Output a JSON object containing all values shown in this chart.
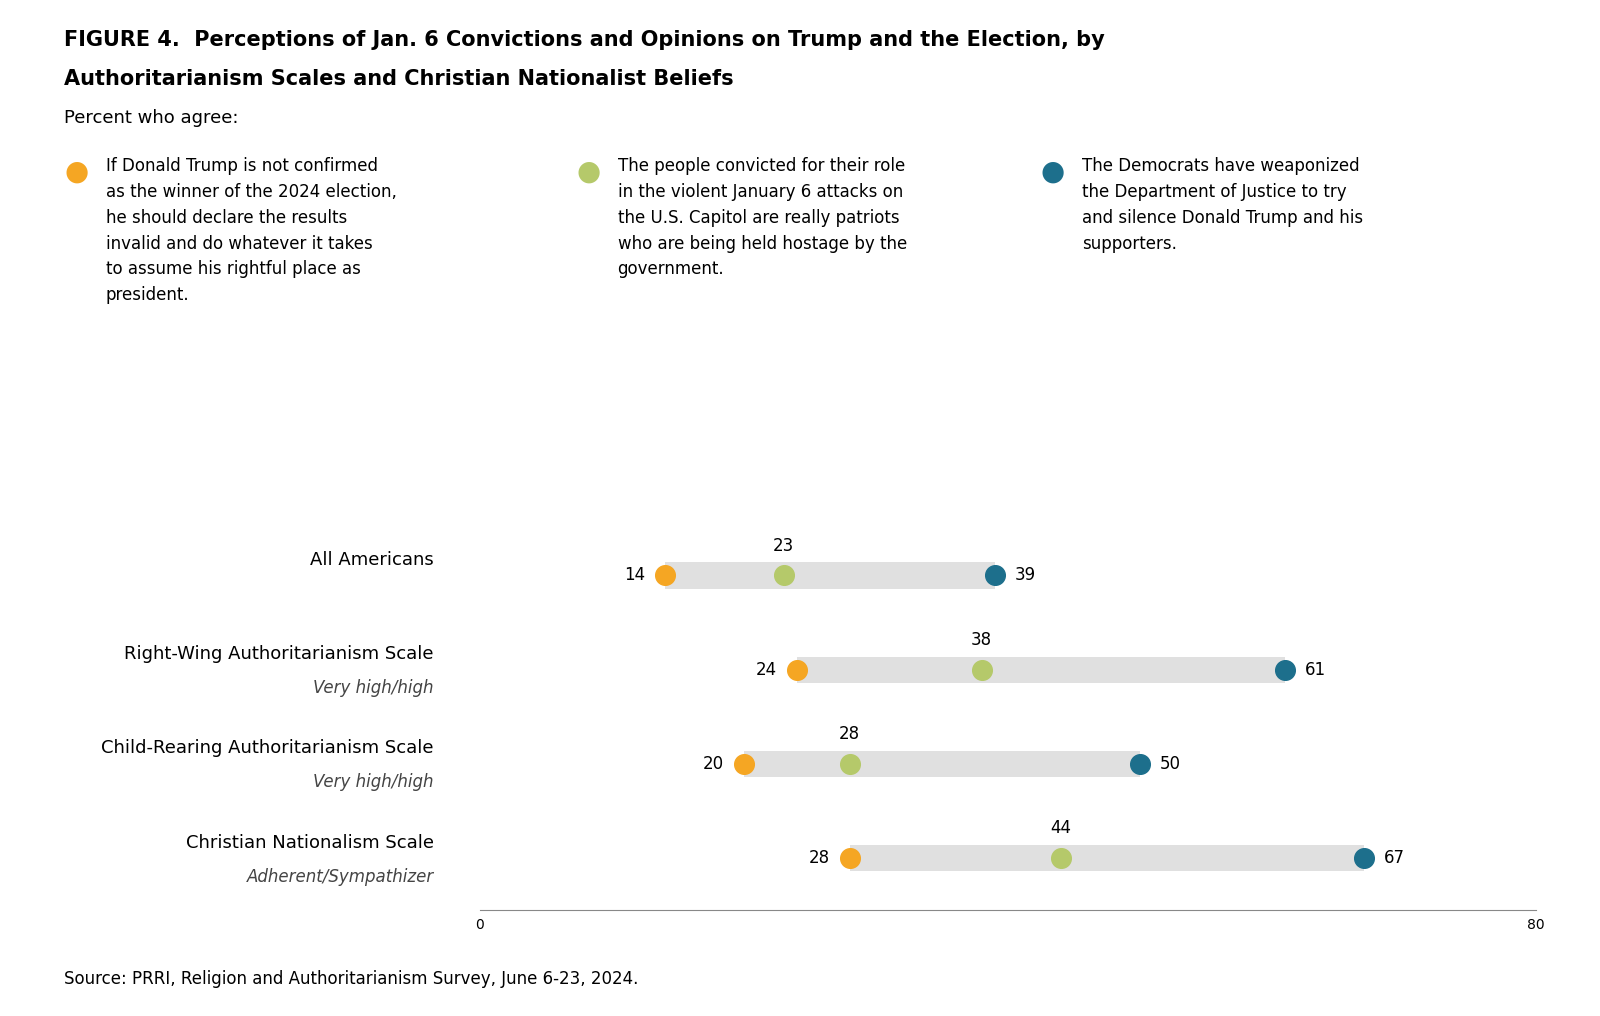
{
  "title_line1": "FIGURE 4.  Perceptions of Jan. 6 Convictions and Opinions on Trump and the Election, by",
  "title_line2": "Authoritarianism Scales and Christian Nationalist Beliefs",
  "subtitle": "Percent who agree:",
  "legend": [
    {
      "color": "#F5A623",
      "text": "If Donald Trump is not confirmed\nas the winner of the 2024 election,\nhe should declare the results\ninvalid and do whatever it takes\nto assume his rightful place as\npresident."
    },
    {
      "color": "#B5C96A",
      "text": "The people convicted for their role\nin the violent January 6 attacks on\nthe U.S. Capitol are really patriots\nwho are being held hostage by the\ngovernment."
    },
    {
      "color": "#1D6F8C",
      "text": "The Democrats have weaponized\nthe Department of Justice to try\nand silence Donald Trump and his\nsupporters."
    }
  ],
  "categories": [
    {
      "label": "All Americans",
      "sublabel": null,
      "orange": 14,
      "green": 23,
      "blue": 39
    },
    {
      "label": "Right-Wing Authoritarianism Scale",
      "sublabel": "Very high/high",
      "orange": 24,
      "green": 38,
      "blue": 61
    },
    {
      "label": "Child-Rearing Authoritarianism Scale",
      "sublabel": "Very high/high",
      "orange": 20,
      "green": 28,
      "blue": 50
    },
    {
      "label": "Christian Nationalism Scale",
      "sublabel": "Adherent/Sympathizer",
      "orange": 28,
      "green": 44,
      "blue": 67
    }
  ],
  "xmin": 0,
  "xmax": 80,
  "xticks": [
    0,
    80
  ],
  "bar_color": "#E0E0E0",
  "orange_color": "#F5A623",
  "green_color": "#B5C96A",
  "blue_color": "#1D6F8C",
  "dot_size": 200,
  "source": "Source: PRRI, Religion and Authoritarianism Survey, June 6-23, 2024.",
  "background_color": "#FFFFFF",
  "title_fontsize": 15,
  "label_fontsize": 13,
  "sublabel_fontsize": 12,
  "number_fontsize": 12,
  "legend_fontsize": 12,
  "source_fontsize": 12
}
